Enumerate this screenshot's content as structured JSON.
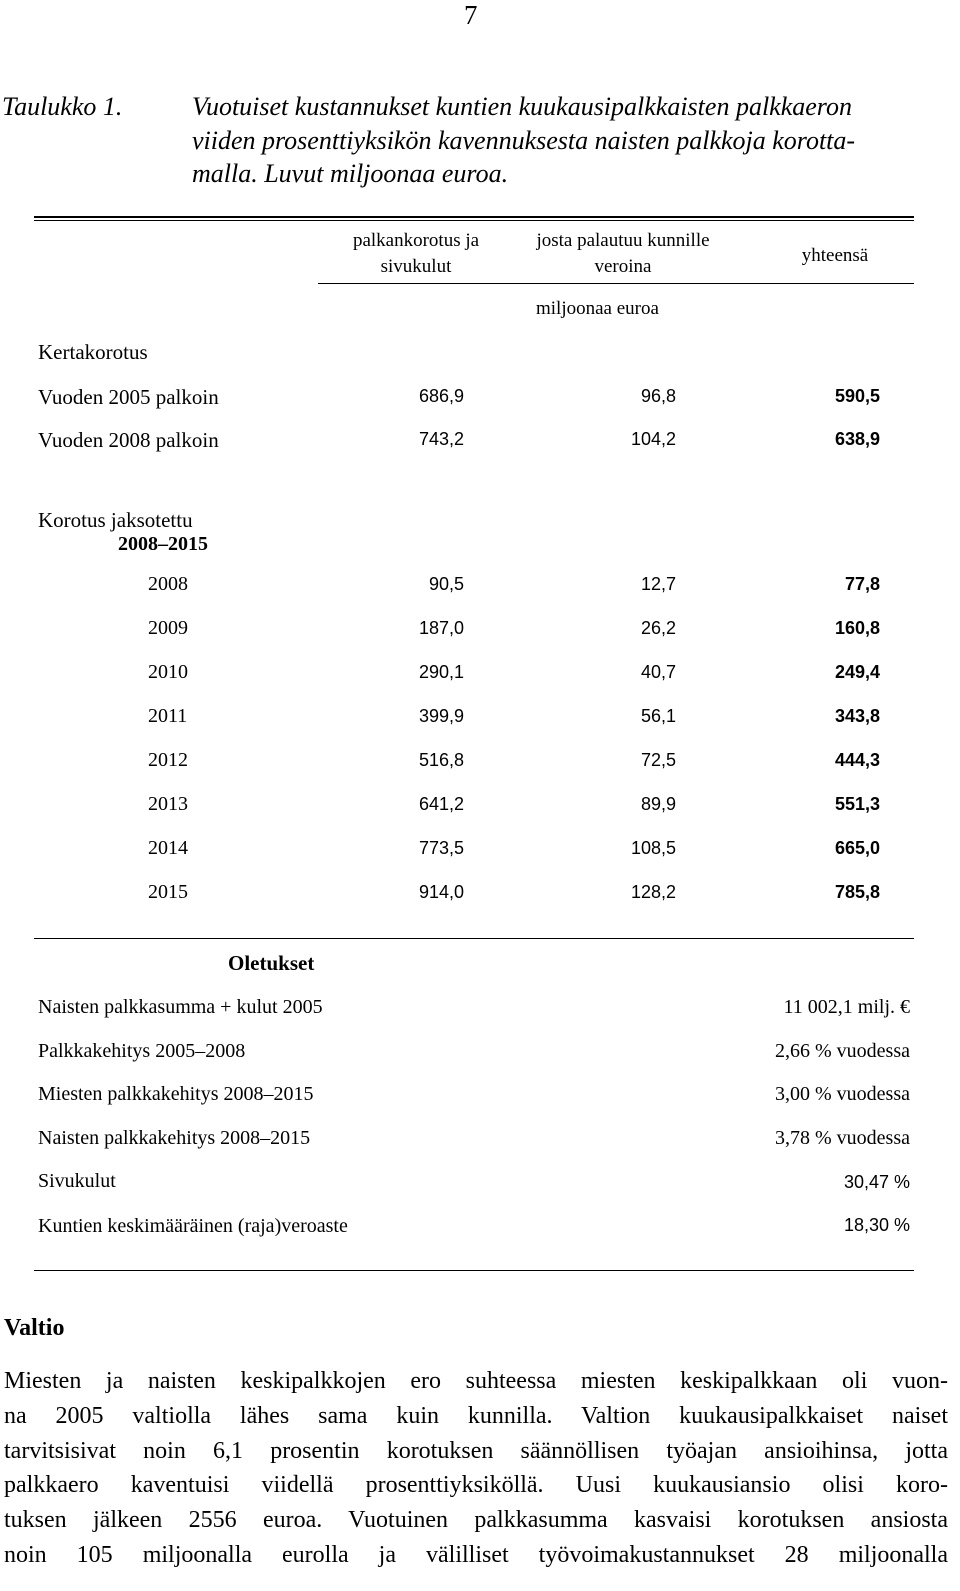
{
  "page_number": "7",
  "caption": {
    "label": "Taulukko 1.",
    "lines": [
      "Vuotuiset kustannukset kuntien kuukausipalkkaisten palkkaeron",
      "viiden prosenttiyksikön kavennuksesta naisten palkkoja korotta-",
      "malla. Luvut miljoonaa euroa."
    ]
  },
  "table": {
    "headers": {
      "col1": "palkankorotus ja sivukulut",
      "col2": "josta palautuu kunnille veroina",
      "col3": "yhteensä",
      "unit": "miljoonaa euroa"
    },
    "kertakorotus": {
      "label": "Kertakorotus",
      "rows": [
        {
          "label": "Vuoden 2005 palkoin",
          "c1": "686,9",
          "c2": "96,8",
          "c3": "590,5"
        },
        {
          "label": "Vuoden 2008 palkoin",
          "c1": "743,2",
          "c2": "104,2",
          "c3": "638,9"
        }
      ]
    },
    "jaksotettu": {
      "label_line1": "Korotus jaksotettu",
      "label_line2": "2008–2015",
      "rows": [
        {
          "year": "2008",
          "c1": "90,5",
          "c2": "12,7",
          "c3": "77,8"
        },
        {
          "year": "2009",
          "c1": "187,0",
          "c2": "26,2",
          "c3": "160,8"
        },
        {
          "year": "2010",
          "c1": "290,1",
          "c2": "40,7",
          "c3": "249,4"
        },
        {
          "year": "2011",
          "c1": "399,9",
          "c2": "56,1",
          "c3": "343,8"
        },
        {
          "year": "2012",
          "c1": "516,8",
          "c2": "72,5",
          "c3": "444,3"
        },
        {
          "year": "2013",
          "c1": "641,2",
          "c2": "89,9",
          "c3": "551,3"
        },
        {
          "year": "2014",
          "c1": "773,5",
          "c2": "108,5",
          "c3": "665,0"
        },
        {
          "year": "2015",
          "c1": "914,0",
          "c2": "128,2",
          "c3": "785,8"
        }
      ]
    }
  },
  "assumptions": {
    "title": "Oletukset",
    "rows": [
      {
        "label": "Naisten palkkasumma + kulut 2005",
        "value": "11 002,1 milj. €"
      },
      {
        "label": "Palkkakehitys 2005–2008",
        "value": "2,66 % vuodessa"
      },
      {
        "label": "Miesten palkkakehitys 2008–2015",
        "value": "3,00 % vuodessa"
      },
      {
        "label": "Naisten palkkakehitys 2008–2015",
        "value": "3,78 % vuodessa"
      },
      {
        "label": "Sivukulut",
        "value": "30,47 %"
      },
      {
        "label": "Kuntien keskimääräinen (raja)veroaste",
        "value": "18,30 %"
      }
    ]
  },
  "section": {
    "title": "Valtio",
    "lines": [
      "Miesten ja naisten keskipalkkojen ero suhteessa miesten keskipalkkaan oli vuon-",
      "na 2005 valtiolla lähes sama kuin kunnilla. Valtion kuukausipalkkaiset naiset",
      "tarvitsisivat noin 6,1 prosentin korotuksen säännöllisen työajan ansioihinsa, jotta",
      "palkkaero kaventuisi viidellä prosenttiyksiköllä. Uusi kuukausiansio olisi koro-",
      "tuksen jälkeen 2556 euroa. Vuotuinen palkkasumma kasvaisi korotuksen ansiosta",
      "noin 105 miljoonalla eurolla ja välilliset työvoimakustannukset 28 miljoonalla"
    ]
  }
}
